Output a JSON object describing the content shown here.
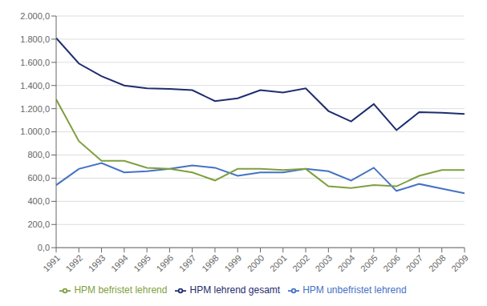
{
  "chart_data": {
    "type": "line",
    "x": [
      1991,
      1992,
      1993,
      1994,
      1995,
      1996,
      1997,
      1998,
      1999,
      2000,
      2001,
      2002,
      2003,
      2004,
      2005,
      2006,
      2007,
      2008,
      2009
    ],
    "series": [
      {
        "name": "HPM unbefristet lehrend",
        "color": "#4472c4",
        "values": [
          540,
          680,
          730,
          650,
          660,
          680,
          710,
          690,
          620,
          650,
          650,
          680,
          660,
          580,
          690,
          490,
          550,
          510,
          470
        ]
      },
      {
        "name": "HPM befristet lehrend",
        "color": "#7f9f3f",
        "values": [
          1280,
          920,
          750,
          750,
          690,
          680,
          650,
          580,
          680,
          680,
          670,
          680,
          530,
          515,
          540,
          530,
          620,
          670,
          670
        ]
      },
      {
        "name": "HPM lehrend gesamt",
        "color": "#1f2d6e",
        "values": [
          1810,
          1590,
          1480,
          1400,
          1375,
          1370,
          1360,
          1265,
          1290,
          1360,
          1340,
          1375,
          1180,
          1090,
          1240,
          1015,
          1170,
          1165,
          1155
        ]
      }
    ],
    "xlim": [
      1991,
      2009
    ],
    "xticks": [
      1991,
      1992,
      1993,
      1994,
      1995,
      1996,
      1997,
      1998,
      1999,
      2000,
      2001,
      2002,
      2003,
      2004,
      2005,
      2006,
      2007,
      2008,
      2009
    ],
    "ylim": [
      0,
      2000
    ],
    "yticks": [
      {
        "value": 0,
        "label": "0,0"
      },
      {
        "value": 200,
        "label": "200,0"
      },
      {
        "value": 400,
        "label": "400,0"
      },
      {
        "value": 600,
        "label": "600,0"
      },
      {
        "value": 800,
        "label": "800,0"
      },
      {
        "value": 1000,
        "label": "1.000,0"
      },
      {
        "value": 1200,
        "label": "1.200,0"
      },
      {
        "value": 1400,
        "label": "1.400,0"
      },
      {
        "value": 1600,
        "label": "1.600,0"
      },
      {
        "value": 1800,
        "label": "1.800,0"
      },
      {
        "value": 2000,
        "label": "2.000,0"
      }
    ],
    "grid": "y",
    "legend": "bottom"
  }
}
